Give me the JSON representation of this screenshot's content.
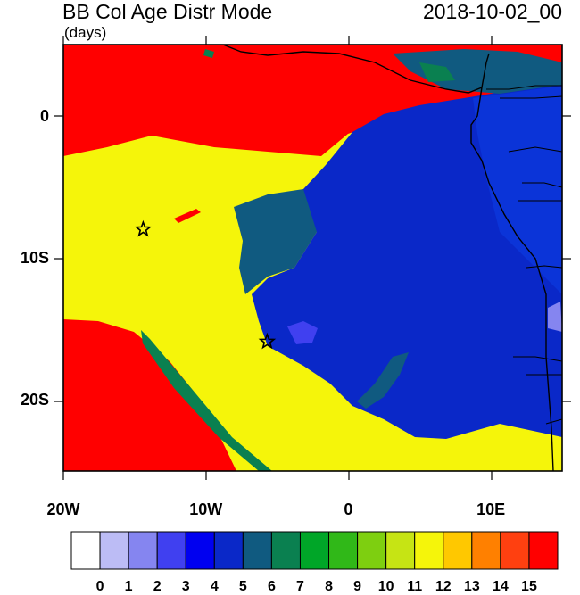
{
  "header": {
    "title": "BB Col Age Distr Mode",
    "units": "(days)",
    "date": "2018-10-02_00"
  },
  "map": {
    "x_tick_labels": [
      {
        "lon": -20,
        "label": "20W"
      },
      {
        "lon": -10,
        "label": "10W"
      },
      {
        "lon": 0,
        "label": "0"
      },
      {
        "lon": 10,
        "label": "10E"
      }
    ],
    "y_tick_labels": [
      {
        "lat": 0,
        "label": "0"
      },
      {
        "lat": -10,
        "label": "10S"
      },
      {
        "lat": -20,
        "label": "20S"
      }
    ],
    "lon_range": [
      -20,
      15
    ],
    "lat_range": [
      -25,
      5
    ],
    "markers": [
      {
        "lon": -14.4,
        "lat": -8.0,
        "symbol": "star"
      },
      {
        "lon": -5.7,
        "lat": -15.9,
        "symbol": "star"
      }
    ]
  },
  "colorbar": {
    "labels": [
      "0",
      "1",
      "2",
      "3",
      "4",
      "5",
      "6",
      "7",
      "8",
      "9",
      "10",
      "11",
      "12",
      "13",
      "14",
      "15"
    ],
    "colors": [
      "#ffffff",
      "#bcbcf5",
      "#8585f0",
      "#4040f0",
      "#0000f0",
      "#0a28c8",
      "#105a80",
      "#0a8050",
      "#00a628",
      "#30b818",
      "#7ecf10",
      "#c6e414",
      "#f5f50a",
      "#ffc800",
      "#ff8000",
      "#ff4010",
      "#ff0000"
    ]
  },
  "fields": {
    "red": "#ff0000",
    "yellow": "#f5f50a",
    "blue": "#0a28c8",
    "teal": "#105a80",
    "seagreen": "#0a8050",
    "mid_blue": "#4040f0",
    "light_purple": "#8585f0",
    "land_blue": "#0b34d8"
  }
}
